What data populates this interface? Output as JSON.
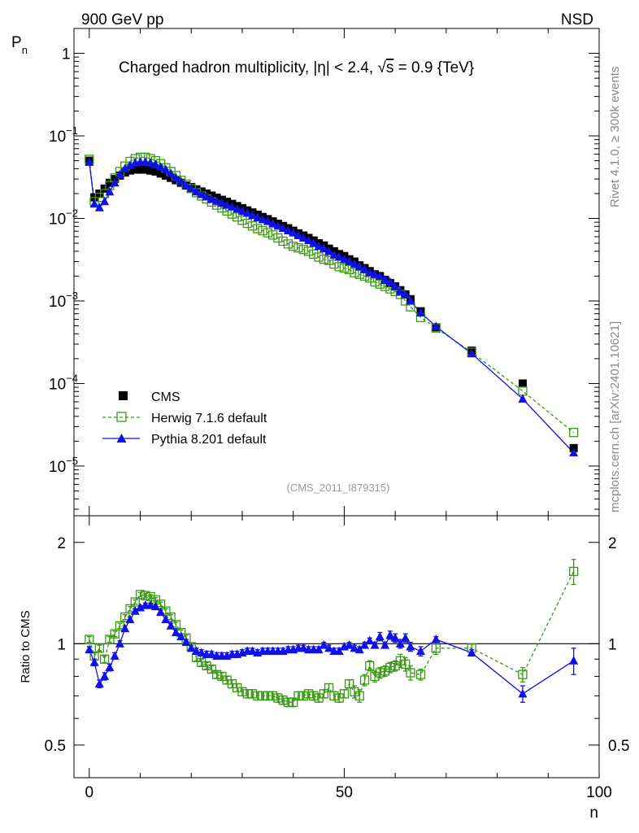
{
  "header": {
    "left": "900 GeV pp",
    "right": "NSD",
    "title_prefix": "Charged hadron multiplicity, ",
    "title_eta": "|η| < 2.4, ",
    "title_sqrt": "√",
    "title_s": "s",
    "title_suffix": " = 0.9 {TeV}"
  },
  "side": {
    "rivet": "Rivet 4.1.0, ≥ 300k events",
    "mcplots": "mcplots.cern.ch [arXiv:2401.10621]"
  },
  "analysis_id": "(CMS_2011_I879315)",
  "colors": {
    "cms": "#000000",
    "herwig": "#3a9a14",
    "pythia": "#1010e8"
  },
  "legend": [
    {
      "id": "cms",
      "label": "CMS"
    },
    {
      "id": "herwig",
      "label": "Herwig 7.1.6 default"
    },
    {
      "id": "pythia",
      "label": "Pythia 8.201 default"
    }
  ],
  "chart_data": [
    {
      "type": "scatter",
      "title": "Charged hadron multiplicity, |η| < 2.4, √s = 0.9 {TeV}",
      "xlabel": "n",
      "ylabel": "P_n",
      "yscale": "log",
      "xlim": [
        -3,
        100
      ],
      "ylim": [
        2.5e-06,
        2
      ],
      "y_ticks": [
        {
          "v": 1e-05,
          "base": "10",
          "exp": "−5"
        },
        {
          "v": 0.0001,
          "base": "10",
          "exp": "−4"
        },
        {
          "v": 0.001,
          "base": "10",
          "exp": "−3"
        },
        {
          "v": 0.01,
          "base": "10",
          "exp": "−2"
        },
        {
          "v": 0.1,
          "base": "10",
          "exp": "−1"
        },
        {
          "v": 1,
          "base": "1",
          "exp": ""
        }
      ],
      "x": [
        0,
        1,
        2,
        3,
        4,
        5,
        6,
        7,
        8,
        9,
        10,
        11,
        12,
        13,
        14,
        15,
        16,
        17,
        18,
        19,
        20,
        21,
        22,
        23,
        24,
        25,
        26,
        27,
        28,
        29,
        30,
        31,
        32,
        33,
        34,
        35,
        36,
        37,
        38,
        39,
        40,
        41,
        42,
        43,
        44,
        45,
        46,
        47,
        48,
        49,
        50,
        51,
        52,
        53,
        54,
        55,
        56,
        57,
        58,
        59,
        60,
        61,
        62,
        63,
        65,
        68,
        75,
        85,
        95
      ],
      "series": [
        {
          "name": "CMS",
          "values": [
            0.05,
            0.018,
            0.02,
            0.023,
            0.027,
            0.03,
            0.033,
            0.036,
            0.038,
            0.039,
            0.039,
            0.039,
            0.038,
            0.037,
            0.035,
            0.033,
            0.031,
            0.029,
            0.027,
            0.025,
            0.024,
            0.0225,
            0.0212,
            0.02,
            0.0189,
            0.0178,
            0.0168,
            0.0159,
            0.015,
            0.0141,
            0.0133,
            0.0125,
            0.0118,
            0.0111,
            0.0104,
            0.0098,
            0.0092,
            0.0086,
            0.0081,
            0.0076,
            0.0071,
            0.0066,
            0.0062,
            0.0058,
            0.0054,
            0.005,
            0.0047,
            0.0043,
            0.004,
            0.0037,
            0.0035,
            0.0032,
            0.003,
            0.0027,
            0.0025,
            0.0023,
            0.0021,
            0.002,
            0.0018,
            0.00165,
            0.0015,
            0.00135,
            0.0012,
            0.00105,
            0.00075,
            0.00048,
            0.00025,
            0.0001,
            1.65e-05
          ]
        },
        {
          "name": "Herwig 7.1.6 default",
          "values": [
            0.052,
            0.016,
            0.018,
            0.02,
            0.025,
            0.031,
            0.037,
            0.043,
            0.049,
            0.053,
            0.055,
            0.055,
            0.053,
            0.05,
            0.046,
            0.041,
            0.037,
            0.033,
            0.029,
            0.026,
            0.023,
            0.0205,
            0.0187,
            0.0172,
            0.0158,
            0.0145,
            0.0134,
            0.0123,
            0.0113,
            0.0104,
            0.0095,
            0.0087,
            0.0081,
            0.0075,
            0.0071,
            0.0067,
            0.0063,
            0.0058,
            0.0053,
            0.0049,
            0.0046,
            0.0044,
            0.0042,
            0.004,
            0.0037,
            0.0034,
            0.0032,
            0.0031,
            0.0028,
            0.0026,
            0.0025,
            0.0024,
            0.0022,
            0.0021,
            0.002,
            0.0019,
            0.0017,
            0.0016,
            0.0015,
            0.0014,
            0.0013,
            0.0012,
            0.001,
            0.00085,
            0.00063,
            0.00047,
            0.00024,
            8.1e-05,
            2.55e-05
          ]
        },
        {
          "name": "Pythia 8.201 default",
          "values": [
            0.048,
            0.015,
            0.0135,
            0.016,
            0.021,
            0.027,
            0.034,
            0.04,
            0.044,
            0.047,
            0.048,
            0.048,
            0.047,
            0.045,
            0.042,
            0.039,
            0.035,
            0.031,
            0.028,
            0.025,
            0.023,
            0.021,
            0.0195,
            0.0183,
            0.0172,
            0.0162,
            0.0153,
            0.0145,
            0.0138,
            0.013,
            0.0122,
            0.0116,
            0.0109,
            0.0102,
            0.0097,
            0.0092,
            0.0086,
            0.0081,
            0.0076,
            0.0071,
            0.0067,
            0.0062,
            0.0058,
            0.0054,
            0.005,
            0.0046,
            0.0043,
            0.004,
            0.0036,
            0.0034,
            0.0032,
            0.003,
            0.0028,
            0.0026,
            0.0024,
            0.0022,
            0.0021,
            0.002,
            0.0018,
            0.0017,
            0.0015,
            0.0013,
            0.0012,
            0.001,
            0.00072,
            0.00049,
            0.00023,
            6.5e-05,
            1.45e-05
          ]
        }
      ]
    },
    {
      "type": "line",
      "title": "",
      "xlabel": "n",
      "ylabel": "Ratio to CMS",
      "yscale": "log",
      "xlim": [
        -3,
        100
      ],
      "ylim": [
        0.4,
        2.4
      ],
      "reference": 1,
      "x_ticks": [
        0,
        50,
        100
      ],
      "y_ticks": [
        {
          "v": 0.5,
          "label": "0.5"
        },
        {
          "v": 1,
          "label": "1"
        },
        {
          "v": 2,
          "label": "2"
        }
      ],
      "x": [
        0,
        1,
        2,
        3,
        4,
        5,
        6,
        7,
        8,
        9,
        10,
        11,
        12,
        13,
        14,
        15,
        16,
        17,
        18,
        19,
        20,
        21,
        22,
        23,
        24,
        25,
        26,
        27,
        28,
        29,
        30,
        31,
        32,
        33,
        34,
        35,
        36,
        37,
        38,
        39,
        40,
        41,
        42,
        43,
        44,
        45,
        46,
        47,
        48,
        49,
        50,
        51,
        52,
        53,
        54,
        55,
        56,
        57,
        58,
        59,
        60,
        61,
        62,
        63,
        65,
        68,
        75,
        85,
        95
      ],
      "series": [
        {
          "name": "Herwig 7.1.6 default",
          "values": [
            1.03,
            0.92,
            0.97,
            0.9,
            1.03,
            1.07,
            1.13,
            1.2,
            1.27,
            1.33,
            1.4,
            1.39,
            1.38,
            1.35,
            1.31,
            1.25,
            1.2,
            1.14,
            1.08,
            1.04,
            0.98,
            0.91,
            0.88,
            0.86,
            0.84,
            0.81,
            0.8,
            0.78,
            0.76,
            0.74,
            0.72,
            0.71,
            0.71,
            0.7,
            0.7,
            0.7,
            0.7,
            0.69,
            0.68,
            0.67,
            0.67,
            0.7,
            0.7,
            0.71,
            0.7,
            0.69,
            0.71,
            0.74,
            0.7,
            0.69,
            0.71,
            0.76,
            0.72,
            0.7,
            0.78,
            0.86,
            0.8,
            0.82,
            0.83,
            0.85,
            0.86,
            0.89,
            0.87,
            0.82,
            0.81,
            0.97,
            0.97,
            0.81,
            1.64
          ],
          "errors": [
            0.02,
            0.02,
            0.02,
            0.02,
            0.02,
            0.02,
            0.02,
            0.02,
            0.02,
            0.02,
            0.02,
            0.02,
            0.02,
            0.02,
            0.02,
            0.02,
            0.02,
            0.02,
            0.02,
            0.02,
            0.02,
            0.02,
            0.02,
            0.02,
            0.02,
            0.02,
            0.02,
            0.02,
            0.02,
            0.02,
            0.02,
            0.02,
            0.02,
            0.02,
            0.02,
            0.02,
            0.02,
            0.02,
            0.02,
            0.02,
            0.02,
            0.02,
            0.02,
            0.02,
            0.02,
            0.02,
            0.02,
            0.02,
            0.02,
            0.02,
            0.02,
            0.02,
            0.03,
            0.03,
            0.03,
            0.03,
            0.03,
            0.03,
            0.03,
            0.03,
            0.03,
            0.04,
            0.04,
            0.04,
            0.03,
            0.04,
            0.03,
            0.04,
            0.14
          ]
        },
        {
          "name": "Pythia 8.201 default",
          "values": [
            0.96,
            0.88,
            0.76,
            0.8,
            0.85,
            0.92,
            1.0,
            1.11,
            1.18,
            1.25,
            1.28,
            1.3,
            1.3,
            1.29,
            1.24,
            1.18,
            1.13,
            1.08,
            1.05,
            1.01,
            0.97,
            0.95,
            0.94,
            0.93,
            0.93,
            0.92,
            0.92,
            0.92,
            0.93,
            0.93,
            0.94,
            0.95,
            0.95,
            0.94,
            0.95,
            0.95,
            0.95,
            0.95,
            0.95,
            0.96,
            0.96,
            0.97,
            0.97,
            0.96,
            0.96,
            0.96,
            0.99,
            0.97,
            0.95,
            0.95,
            0.98,
            0.99,
            0.97,
            0.96,
            0.99,
            1.02,
            0.99,
            1.05,
            0.99,
            1.06,
            1.04,
            1.0,
            1.04,
            0.98,
            0.95,
            1.03,
            0.94,
            0.71,
            0.89
          ],
          "errors": [
            0.02,
            0.02,
            0.02,
            0.02,
            0.02,
            0.02,
            0.02,
            0.02,
            0.02,
            0.02,
            0.02,
            0.02,
            0.02,
            0.02,
            0.02,
            0.02,
            0.02,
            0.02,
            0.02,
            0.02,
            0.02,
            0.02,
            0.02,
            0.02,
            0.02,
            0.02,
            0.02,
            0.02,
            0.02,
            0.02,
            0.02,
            0.02,
            0.02,
            0.02,
            0.02,
            0.02,
            0.02,
            0.02,
            0.02,
            0.02,
            0.02,
            0.02,
            0.02,
            0.02,
            0.02,
            0.02,
            0.02,
            0.02,
            0.02,
            0.02,
            0.02,
            0.02,
            0.02,
            0.02,
            0.02,
            0.02,
            0.02,
            0.03,
            0.02,
            0.03,
            0.03,
            0.03,
            0.03,
            0.03,
            0.03,
            0.02,
            0.02,
            0.04,
            0.08
          ]
        }
      ]
    }
  ]
}
